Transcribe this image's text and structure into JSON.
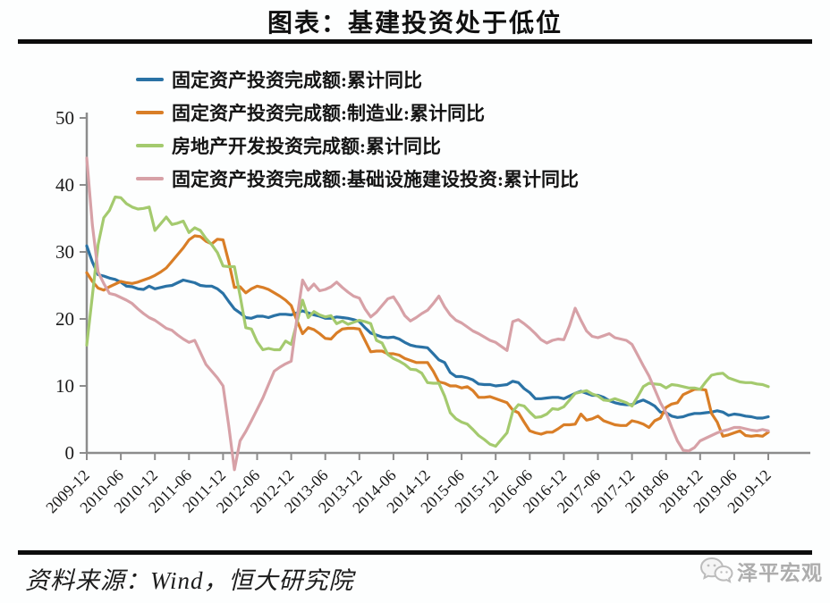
{
  "title": "图表：基建投资处于低位",
  "source_note": "资料来源：Wind，恒大研究院",
  "watermark": "泽平宏观",
  "colors": {
    "axis": "#8c8c8c",
    "tick_text": "#1a1a1a",
    "rule": "#0c0c0c",
    "watermark_gray": "#adadad"
  },
  "chart_data": {
    "type": "line",
    "title": "图表：基建投资处于低位",
    "xlabel": "",
    "ylabel": "",
    "ylim": [
      0,
      50
    ],
    "y_ticks": [
      0,
      10,
      20,
      30,
      40,
      50
    ],
    "grid": false,
    "legend_position": "top-left",
    "x_start": "2009-12",
    "x_step_months": 1,
    "x_tick_every_points": 6,
    "x_tick_labels": [
      "2009-12",
      "2010-06",
      "2010-12",
      "2011-06",
      "2011-12",
      "2012-06",
      "2012-12",
      "2013-06",
      "2013-12",
      "2014-06",
      "2014-12",
      "2015-06",
      "2015-12",
      "2016-06",
      "2016-12",
      "2017-06",
      "2017-12",
      "2018-06",
      "2018-12",
      "2019-06",
      "2019-12"
    ],
    "series": [
      {
        "name": "固定资产投资完成额:累计同比",
        "color": "#2a72a5",
        "values": [
          30.9,
          28.5,
          26.6,
          26.4,
          26.1,
          25.9,
          25.5,
          24.9,
          24.8,
          24.5,
          24.4,
          24.9,
          24.5,
          24.7,
          24.9,
          25.0,
          25.4,
          25.8,
          25.6,
          25.4,
          25.0,
          24.9,
          24.9,
          24.5,
          23.8,
          22.6,
          21.5,
          20.9,
          20.2,
          20.1,
          20.4,
          20.4,
          20.2,
          20.5,
          20.7,
          20.7,
          20.6,
          20.9,
          21.2,
          20.9,
          20.6,
          20.4,
          20.1,
          20.1,
          20.3,
          20.2,
          20.1,
          19.9,
          19.6,
          18.7,
          17.9,
          17.6,
          17.3,
          17.2,
          17.3,
          17.0,
          16.5,
          16.1,
          15.9,
          15.8,
          15.7,
          14.8,
          13.9,
          13.5,
          12.0,
          11.4,
          11.4,
          11.2,
          10.9,
          10.3,
          10.2,
          10.2,
          10.0,
          10.1,
          10.2,
          10.7,
          10.5,
          9.6,
          9.0,
          8.1,
          8.1,
          8.2,
          8.3,
          8.3,
          8.1,
          8.5,
          8.9,
          9.2,
          8.9,
          8.6,
          8.6,
          8.3,
          7.8,
          7.5,
          7.3,
          7.2,
          7.2,
          7.6,
          7.9,
          7.5,
          7.0,
          6.1,
          6.0,
          5.5,
          5.3,
          5.4,
          5.7,
          5.9,
          5.9,
          6.0,
          6.1,
          6.3,
          6.1,
          5.6,
          5.8,
          5.7,
          5.5,
          5.4,
          5.2,
          5.2,
          5.4
        ]
      },
      {
        "name": "固定资产投资完成额:制造业:累计同比",
        "color": "#d97e27",
        "values": [
          26.9,
          25.6,
          24.6,
          24.3,
          24.8,
          25.2,
          25.6,
          25.4,
          25.3,
          25.5,
          25.8,
          26.1,
          26.5,
          27.0,
          27.6,
          28.6,
          29.6,
          30.6,
          31.8,
          32.4,
          32.3,
          31.6,
          31.2,
          31.9,
          31.8,
          28.5,
          24.7,
          24.8,
          23.9,
          24.5,
          24.9,
          24.7,
          24.4,
          23.9,
          23.4,
          22.8,
          22.0,
          19.8,
          17.8,
          18.7,
          18.4,
          17.8,
          17.1,
          17.0,
          17.9,
          18.5,
          18.6,
          18.6,
          18.5,
          16.8,
          15.1,
          15.2,
          15.2,
          14.8,
          14.8,
          14.6,
          14.1,
          13.8,
          13.5,
          13.5,
          13.5,
          12.2,
          10.6,
          10.4,
          10.0,
          10.0,
          9.7,
          9.9,
          9.3,
          8.3,
          8.3,
          8.4,
          8.1,
          7.8,
          7.5,
          6.4,
          6.0,
          4.6,
          3.3,
          3.0,
          2.8,
          3.1,
          3.1,
          3.6,
          4.2,
          4.2,
          4.3,
          5.8,
          4.9,
          5.1,
          5.5,
          4.8,
          4.5,
          4.2,
          4.1,
          4.1,
          4.8,
          4.6,
          4.3,
          3.8,
          4.8,
          5.2,
          6.8,
          7.3,
          7.5,
          8.7,
          9.1,
          9.5,
          9.5,
          9.4,
          5.9,
          4.6,
          2.5,
          2.7,
          3.0,
          3.3,
          2.6,
          2.5,
          2.6,
          2.5,
          3.1
        ]
      },
      {
        "name": "房地产开发投资完成额:累计同比",
        "color": "#a4ca6e",
        "values": [
          16.1,
          23.5,
          31.1,
          35.1,
          36.2,
          38.2,
          38.1,
          37.2,
          36.7,
          36.4,
          36.5,
          36.7,
          33.2,
          34.2,
          35.2,
          34.1,
          34.3,
          34.6,
          32.9,
          33.6,
          33.2,
          32.0,
          31.1,
          29.9,
          27.9,
          27.8,
          27.8,
          23.5,
          18.7,
          18.5,
          16.6,
          15.4,
          15.6,
          15.4,
          15.4,
          16.7,
          16.2,
          19.4,
          22.8,
          20.2,
          21.1,
          20.6,
          20.3,
          20.5,
          19.3,
          19.7,
          19.2,
          19.5,
          19.8,
          19.6,
          19.3,
          16.8,
          16.4,
          14.7,
          14.1,
          13.7,
          13.2,
          12.5,
          12.4,
          11.9,
          10.5,
          10.4,
          10.4,
          8.5,
          6.0,
          5.1,
          4.6,
          4.3,
          3.5,
          2.6,
          2.0,
          1.3,
          1.0,
          2.0,
          3.0,
          6.2,
          7.2,
          7.0,
          6.1,
          5.3,
          5.4,
          5.8,
          6.6,
          6.5,
          6.9,
          7.9,
          8.9,
          9.1,
          9.3,
          8.8,
          8.5,
          7.9,
          7.8,
          8.1,
          7.8,
          7.5,
          7.0,
          8.4,
          9.9,
          10.4,
          10.3,
          10.2,
          9.7,
          10.2,
          10.1,
          9.9,
          9.7,
          9.7,
          9.5,
          10.6,
          11.6,
          11.8,
          11.9,
          11.2,
          10.9,
          10.6,
          10.5,
          10.5,
          10.3,
          10.2,
          9.9
        ]
      },
      {
        "name": "固定资产投资完成额:基础设施建设投资:累计同比",
        "color": "#d7a1a7",
        "values": [
          44.0,
          34.0,
          27.0,
          25.3,
          23.8,
          23.6,
          23.2,
          22.8,
          22.3,
          21.5,
          20.8,
          20.2,
          19.8,
          19.2,
          18.6,
          18.3,
          17.6,
          17.0,
          16.5,
          16.8,
          15.0,
          13.2,
          12.2,
          11.2,
          10.0,
          4.0,
          -2.5,
          1.8,
          3.2,
          4.8,
          6.5,
          8.2,
          10.2,
          12.2,
          12.8,
          13.3,
          13.7,
          20.0,
          25.8,
          24.3,
          25.2,
          24.2,
          24.4,
          24.8,
          25.5,
          24.7,
          24.0,
          23.4,
          23.1,
          21.5,
          20.3,
          21.0,
          22.0,
          23.0,
          23.3,
          22.0,
          20.5,
          19.7,
          20.2,
          20.8,
          21.3,
          22.3,
          23.4,
          21.8,
          20.6,
          19.8,
          19.4,
          18.8,
          18.2,
          17.8,
          17.3,
          16.8,
          16.5,
          15.9,
          15.3,
          19.6,
          19.9,
          19.3,
          18.6,
          17.8,
          16.9,
          16.4,
          16.8,
          17.0,
          16.9,
          19.0,
          21.6,
          19.8,
          18.2,
          17.4,
          17.2,
          17.5,
          17.8,
          17.2,
          17.0,
          16.8,
          16.2,
          14.6,
          13.0,
          11.5,
          9.5,
          7.5,
          6.0,
          3.8,
          1.8,
          0.4,
          0.3,
          0.8,
          1.8,
          2.2,
          2.6,
          3.0,
          3.3,
          3.5,
          3.8,
          3.8,
          3.6,
          3.4,
          3.3,
          3.5,
          3.3
        ]
      }
    ]
  }
}
